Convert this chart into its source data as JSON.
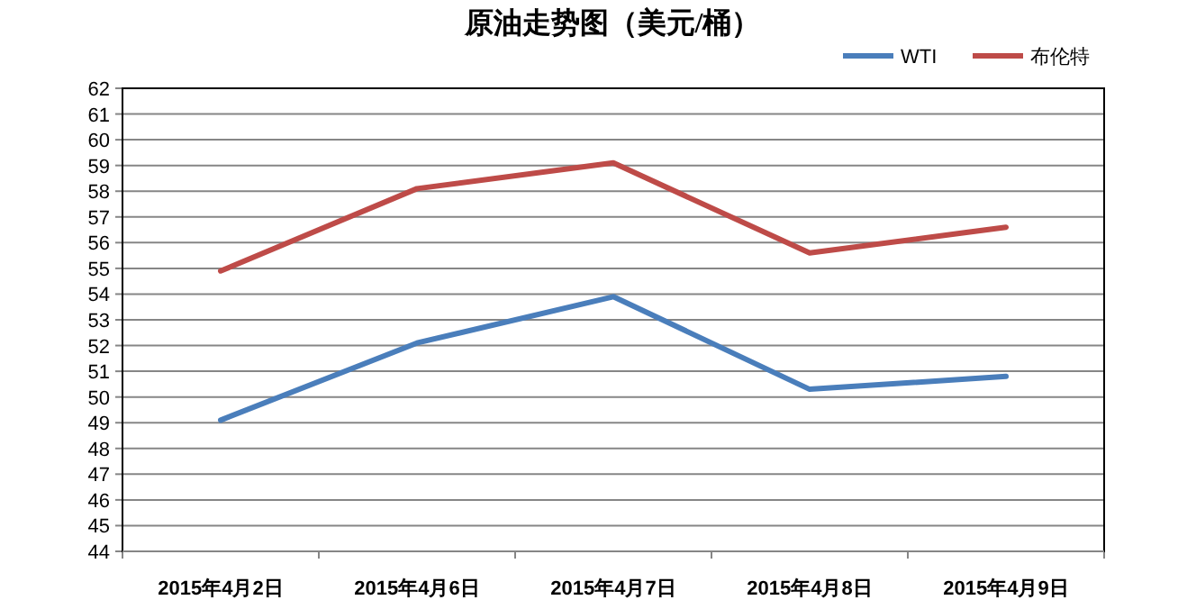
{
  "chart_data": {
    "type": "line",
    "title": "原油走势图（美元/桶）",
    "categories": [
      "2015年4月2日",
      "2015年4月6日",
      "2015年4月7日",
      "2015年4月8日",
      "2015年4月9日"
    ],
    "series": [
      {
        "name": "WTI",
        "color": "#4a7ebb",
        "values": [
          49.1,
          52.1,
          53.9,
          50.3,
          50.8
        ]
      },
      {
        "name": "布伦特",
        "color": "#be4b48",
        "values": [
          54.9,
          58.1,
          59.1,
          55.6,
          56.6
        ]
      }
    ],
    "ylim": [
      44,
      62
    ],
    "yticks": [
      44,
      45,
      46,
      47,
      48,
      49,
      50,
      51,
      52,
      53,
      54,
      55,
      56,
      57,
      58,
      59,
      60,
      61,
      62
    ],
    "grid": "y",
    "legend": "top right",
    "marker": "none",
    "line_style": "solid"
  }
}
